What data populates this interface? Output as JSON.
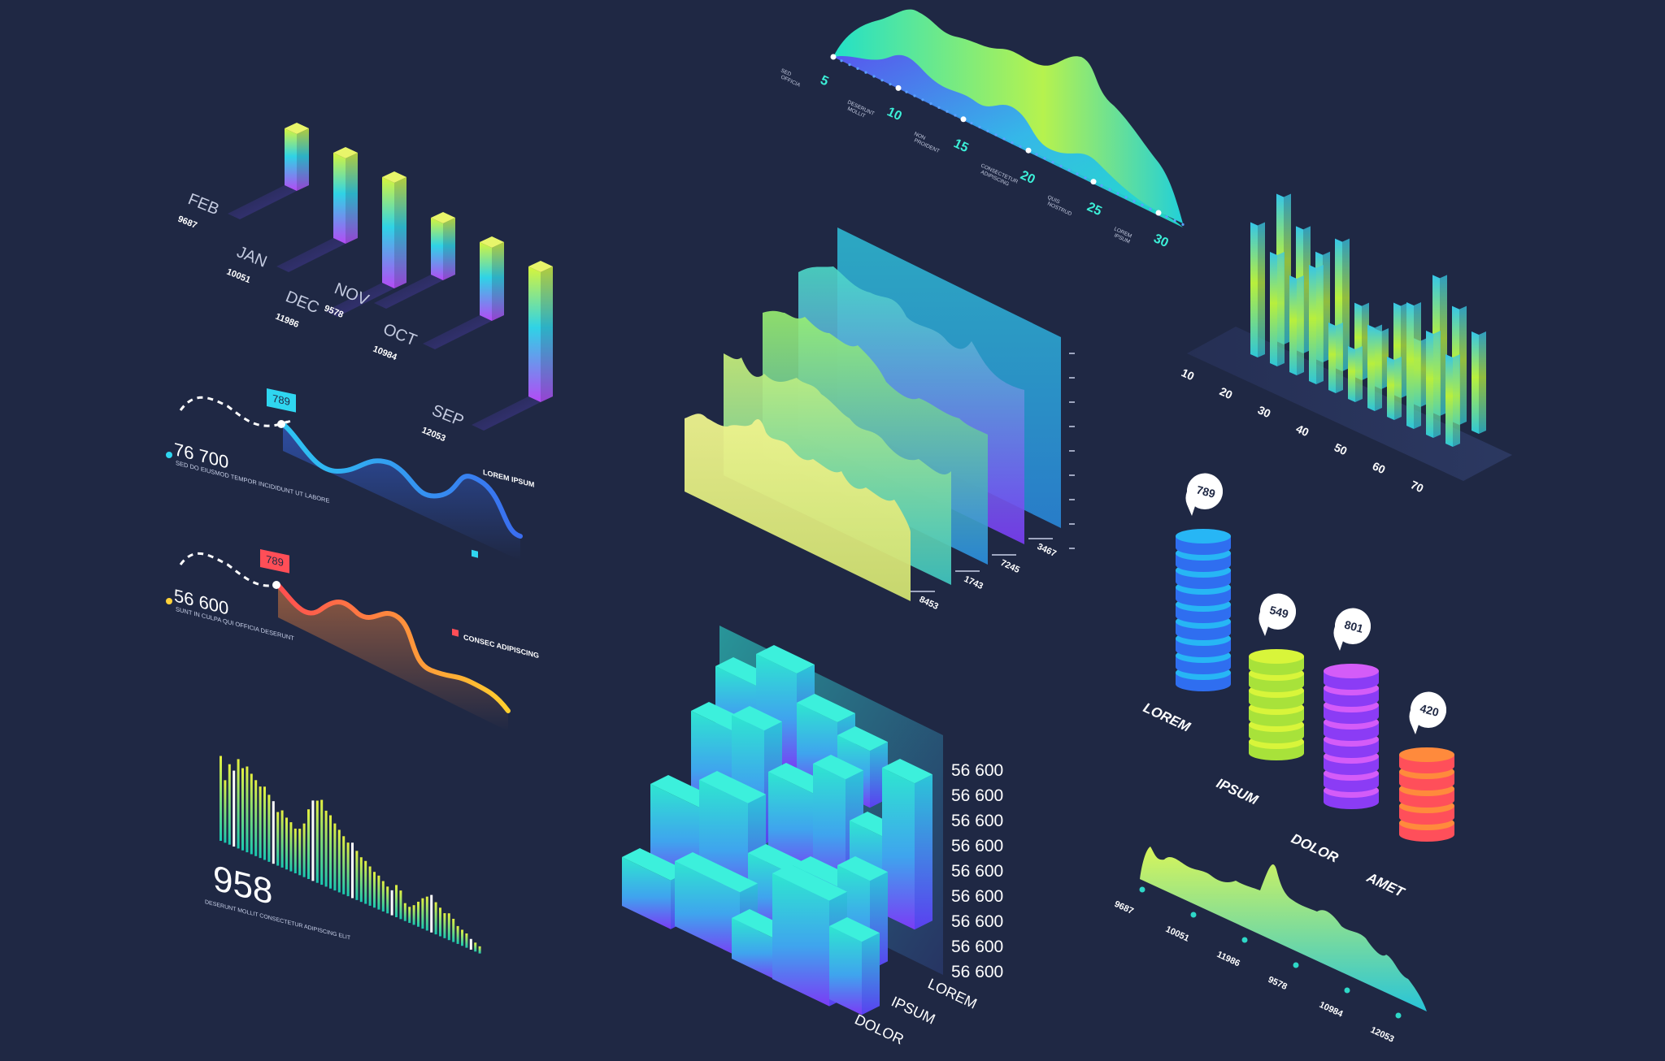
{
  "page": {
    "background": "#1f2844"
  },
  "chart_data": [
    {
      "id": "iso-month-bars",
      "type": "bar",
      "categories": [
        "FEB",
        "JAN",
        "DEC",
        "NOV",
        "OCT",
        "SEP"
      ],
      "values": [
        9687,
        10051,
        11986,
        9578,
        10984,
        12053
      ],
      "colors": [
        "#c6f53b",
        "#33d6e6",
        "#b44af5"
      ],
      "title": "",
      "xlabel": "",
      "ylabel": ""
    },
    {
      "id": "wave-area-top",
      "type": "area",
      "labels": [
        {
          "value": "5",
          "text": "SED\nOFFICIA"
        },
        {
          "value": "10",
          "text": "DESERUNT\nMOLLIT"
        },
        {
          "value": "15",
          "text": "NON\nPROIDENT"
        },
        {
          "value": "20",
          "text": "CONSECTETUR\nADIPISCING"
        },
        {
          "value": "25",
          "text": "QUIS\nNOSTRUD"
        },
        {
          "value": "30",
          "text": "LOREM\nIPSUM"
        }
      ],
      "colors": [
        "#a7f04e",
        "#22e0c8",
        "#3d5cf0"
      ]
    },
    {
      "id": "line-blue",
      "type": "line",
      "badge": "789",
      "value_text": "76 700",
      "caption": "SED DO EIUSMOD TEMPOR INCIDIDUNT UT LABORE",
      "legend": "LOREM IPSUM",
      "color": "#38bdf8",
      "values": [
        0.92,
        0.55,
        0.72,
        0.58,
        0.8,
        0.38,
        0.1
      ]
    },
    {
      "id": "line-orange",
      "type": "line",
      "badge": "789",
      "value_text": "56 600",
      "caption": "SUNT IN CULPA QUI OFFICIA DESERUNT",
      "legend": "CONSEC ADIPISCING",
      "color": "#fb7a3c",
      "values": [
        0.9,
        0.7,
        0.95,
        0.85,
        0.98,
        0.5,
        0.55,
        0.2
      ]
    },
    {
      "id": "layered-areas",
      "type": "area",
      "series": [
        {
          "name": "8453"
        },
        {
          "name": "1743"
        },
        {
          "name": "7245"
        },
        {
          "name": "3467"
        }
      ],
      "colors": [
        "#e3f28a",
        "#a8ee6a",
        "#3fd6c8",
        "#3b6ff0",
        "#8b3df5"
      ]
    },
    {
      "id": "iso-columns",
      "type": "bar",
      "xticks": [
        "10",
        "20",
        "30",
        "40",
        "50",
        "60",
        "70"
      ],
      "values": [
        0.95,
        0.78,
        0.66,
        0.82,
        0.42,
        0.3,
        0.55,
        0.36,
        0.88,
        0.72,
        0.6
      ],
      "colors": [
        "#35c8e8",
        "#b4ee3c"
      ]
    },
    {
      "id": "spectrum-bars",
      "type": "bar",
      "value_text": "958",
      "caption": "DESERUNT MOLLIT\nCONSECTETUR ADIPISCING ELIT",
      "colors": [
        "#21d0b0",
        "#d8ee3c",
        "#ffffff"
      ]
    },
    {
      "id": "iso-blocks",
      "type": "bar",
      "ytick_labels": [
        "56 600",
        "56 600",
        "56 600",
        "56 600",
        "56 600",
        "56 600",
        "56 600",
        "56 600",
        "56 600"
      ],
      "rows": [
        "LOREM",
        "IPSUM",
        "DOLOR"
      ],
      "colors": [
        "#2ee6d0",
        "#4a8cf0",
        "#7a3cf5"
      ]
    },
    {
      "id": "coin-stacks",
      "type": "bar",
      "categories": [
        "LOREM",
        "IPSUM",
        "DOLOR",
        "AMET"
      ],
      "values": [
        789,
        549,
        801,
        420
      ],
      "colors": [
        "#2f8ff5",
        "#c8f03a",
        "#c04cf8",
        "#ff6f3c"
      ]
    },
    {
      "id": "bottom-wave",
      "type": "area",
      "xticks": [
        "9687",
        "10051",
        "11986",
        "9578",
        "10984",
        "12053"
      ],
      "colors": [
        "#d8f55a",
        "#28c4d8"
      ]
    }
  ]
}
